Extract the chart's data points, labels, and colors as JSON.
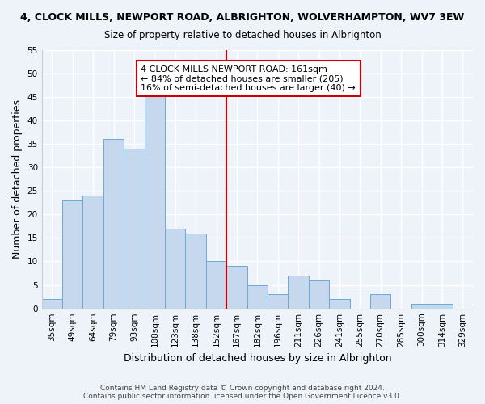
{
  "title": "4, CLOCK MILLS, NEWPORT ROAD, ALBRIGHTON, WOLVERHAMPTON, WV7 3EW",
  "subtitle": "Size of property relative to detached houses in Albrighton",
  "xlabel": "Distribution of detached houses by size in Albrighton",
  "ylabel": "Number of detached properties",
  "categories": [
    "35sqm",
    "49sqm",
    "64sqm",
    "79sqm",
    "93sqm",
    "108sqm",
    "123sqm",
    "138sqm",
    "152sqm",
    "167sqm",
    "182sqm",
    "196sqm",
    "211sqm",
    "226sqm",
    "241sqm",
    "255sqm",
    "270sqm",
    "285sqm",
    "300sqm",
    "314sqm",
    "329sqm"
  ],
  "values": [
    2,
    23,
    24,
    36,
    34,
    46,
    17,
    16,
    10,
    9,
    5,
    3,
    7,
    6,
    2,
    0,
    3,
    0,
    1,
    1,
    0
  ],
  "bar_color": "#c5d8ed",
  "bar_edge_color": "#6aaad4",
  "vline_color": "#cc0000",
  "vline_x_index": 8.5,
  "annotation_text": "4 CLOCK MILLS NEWPORT ROAD: 161sqm\n← 84% of detached houses are smaller (205)\n16% of semi-detached houses are larger (40) →",
  "annotation_box_color": "#ffffff",
  "annotation_border_color": "#cc0000",
  "ylim": [
    0,
    55
  ],
  "yticks": [
    0,
    5,
    10,
    15,
    20,
    25,
    30,
    35,
    40,
    45,
    50,
    55
  ],
  "footer_line1": "Contains HM Land Registry data © Crown copyright and database right 2024.",
  "footer_line2": "Contains public sector information licensed under the Open Government Licence v3.0.",
  "bg_color": "#eef2f9",
  "grid_color": "#ffffff",
  "title_fontsize": 9,
  "subtitle_fontsize": 8.5,
  "annotation_fontsize": 8,
  "ylabel_fontsize": 9,
  "xlabel_fontsize": 9,
  "tick_fontsize": 7.5,
  "footer_fontsize": 6.5
}
